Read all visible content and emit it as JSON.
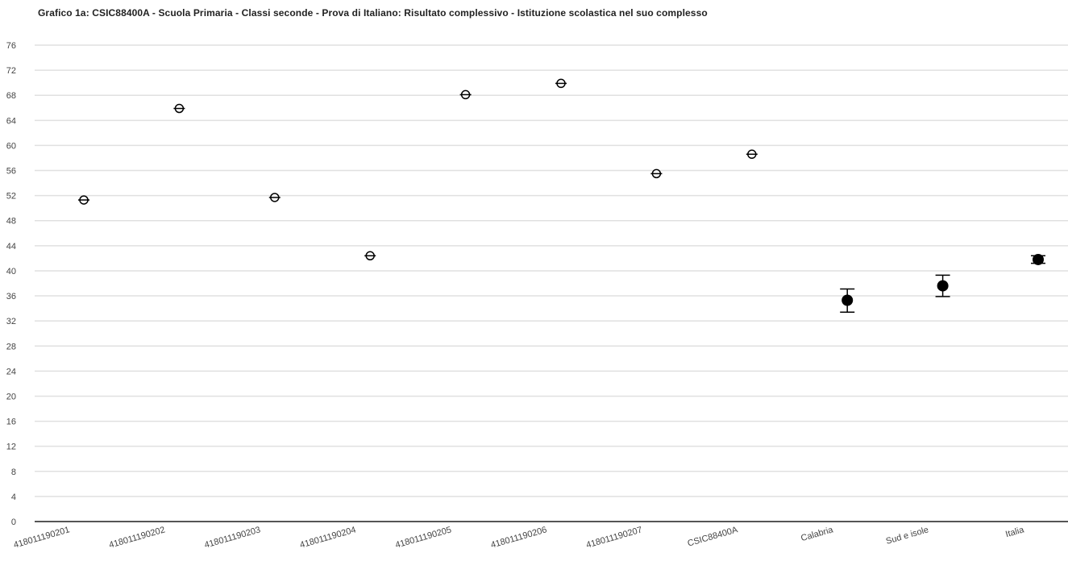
{
  "chart_data": {
    "type": "scatter",
    "title": "Grafico 1a: CSIC88400A - Scuola Primaria - Classi seconde - Prova di Italiano: Risultato complessivo - Istituzione scolastica nel suo complesso",
    "xlabel": "",
    "ylabel": "",
    "ylim": [
      0,
      76
    ],
    "ytick_step": 4,
    "grid": true,
    "categories": [
      "418011190201",
      "418011190202",
      "418011190203",
      "418011190204",
      "418011190205",
      "418011190206",
      "418011190207",
      "CSIC88400A",
      "Calabria",
      "Sud e isole",
      "Italia"
    ],
    "points": [
      {
        "category": "418011190201",
        "value": 51.3,
        "marker": "open"
      },
      {
        "category": "418011190202",
        "value": 65.9,
        "marker": "open"
      },
      {
        "category": "418011190203",
        "value": 51.7,
        "marker": "open"
      },
      {
        "category": "418011190204",
        "value": 42.4,
        "marker": "open"
      },
      {
        "category": "418011190205",
        "value": 68.1,
        "marker": "open"
      },
      {
        "category": "418011190206",
        "value": 69.9,
        "marker": "open"
      },
      {
        "category": "418011190207",
        "value": 55.5,
        "marker": "open"
      },
      {
        "category": "CSIC88400A",
        "value": 58.6,
        "marker": "open"
      },
      {
        "category": "Calabria",
        "value": 35.3,
        "marker": "filled",
        "error_low": 33.4,
        "error_high": 37.1
      },
      {
        "category": "Sud e isole",
        "value": 37.6,
        "marker": "filled",
        "error_low": 35.9,
        "error_high": 39.3
      },
      {
        "category": "Italia",
        "value": 41.8,
        "marker": "filled",
        "error_low": 41.2,
        "error_high": 42.4
      }
    ],
    "colors": {
      "marker": "#000000",
      "grid": "#e0e0e0",
      "axis": "#555555"
    }
  }
}
